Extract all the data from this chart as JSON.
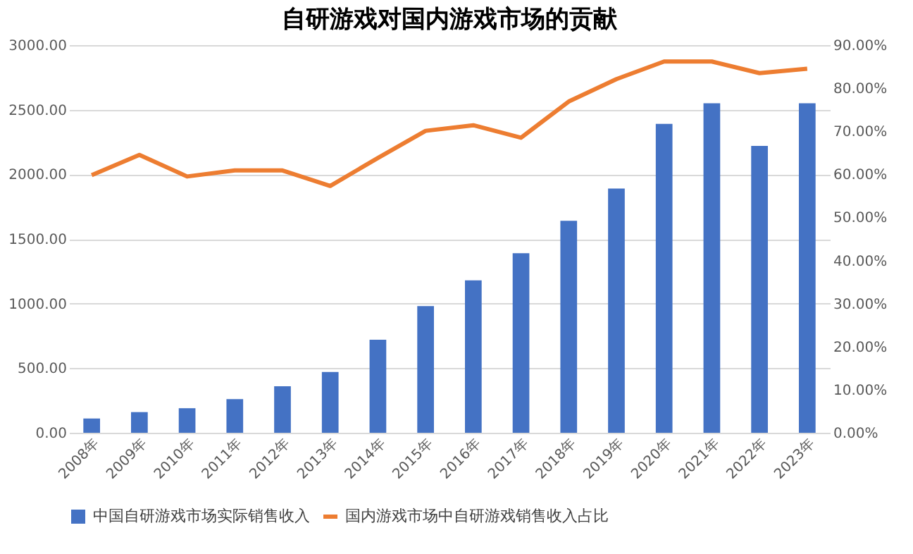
{
  "chart_data": {
    "type": "bar",
    "title": "自研游戏对国内游戏市场的贡献",
    "categories": [
      "2008年",
      "2009年",
      "2010年",
      "2011年",
      "2012年",
      "2013年",
      "2014年",
      "2015年",
      "2016年",
      "2017年",
      "2018年",
      "2019年",
      "2020年",
      "2021年",
      "2022年",
      "2023年"
    ],
    "series": [
      {
        "name": "中国自研游戏市场实际销售收入",
        "color": "#4472c4",
        "values": [
          110,
          160,
          190,
          260,
          360,
          470,
          720,
          980,
          1180,
          1390,
          1640,
          1890,
          2390,
          2550,
          2220,
          2550
        ]
      },
      {
        "name": "国内游戏市场中自研游戏销售收入占比",
        "type": "line",
        "axis": "y2",
        "color": "#ed7d31",
        "values": [
          59.8,
          64.5,
          59.5,
          60.9,
          60.9,
          57.3,
          63.8,
          70.1,
          71.4,
          68.5,
          76.9,
          82.1,
          86.2,
          86.2,
          83.5,
          84.5
        ]
      }
    ],
    "ylim": [
      0,
      3000
    ],
    "yticks": [
      {
        "value": 0,
        "label": "0.00"
      },
      {
        "value": 500,
        "label": "500.00"
      },
      {
        "value": 1000,
        "label": "1000.00"
      },
      {
        "value": 1500,
        "label": "1500.00"
      },
      {
        "value": 2000,
        "label": "2000.00"
      },
      {
        "value": 2500,
        "label": "2500.00"
      },
      {
        "value": 3000,
        "label": "3000.00"
      }
    ],
    "y2lim": [
      0,
      90
    ],
    "y2ticks": [
      {
        "value": 0,
        "label": "0.00%"
      },
      {
        "value": 10,
        "label": "10.00%"
      },
      {
        "value": 20,
        "label": "20.00%"
      },
      {
        "value": 30,
        "label": "30.00%"
      },
      {
        "value": 40,
        "label": "40.00%"
      },
      {
        "value": 50,
        "label": "50.00%"
      },
      {
        "value": 60,
        "label": "60.00%"
      },
      {
        "value": 70,
        "label": "70.00%"
      },
      {
        "value": 80,
        "label": "80.00%"
      },
      {
        "value": 90,
        "label": "90.00%"
      }
    ],
    "grid": "y",
    "legend": "bottom",
    "marker": "none",
    "line_style": "solid"
  }
}
